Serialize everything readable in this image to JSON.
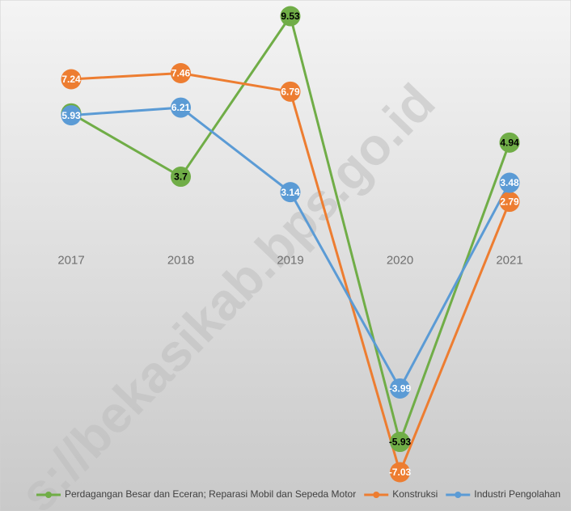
{
  "chart_data": {
    "type": "line",
    "categories": [
      "2017",
      "2018",
      "2019",
      "2020",
      "2021"
    ],
    "series": [
      {
        "name": "Perdagangan Besar dan Eceran; Reparasi Mobil dan Sepeda Motor",
        "color": "#70ad47",
        "label_color": "#000000",
        "values": [
          6,
          3.7,
          9.53,
          -5.93,
          4.94
        ]
      },
      {
        "name": "Konstruksi",
        "color": "#ed7d31",
        "label_color": "#ffffff",
        "values": [
          7.24,
          7.46,
          6.79,
          -7.03,
          2.79
        ]
      },
      {
        "name": "Industri Pengolahan",
        "color": "#5b9bd5",
        "label_color": "#ffffff",
        "values": [
          5.93,
          6.21,
          3.14,
          -3.99,
          3.48
        ]
      }
    ],
    "legend": "bottom",
    "watermark": "s://bekasikab.bps.go.id"
  }
}
